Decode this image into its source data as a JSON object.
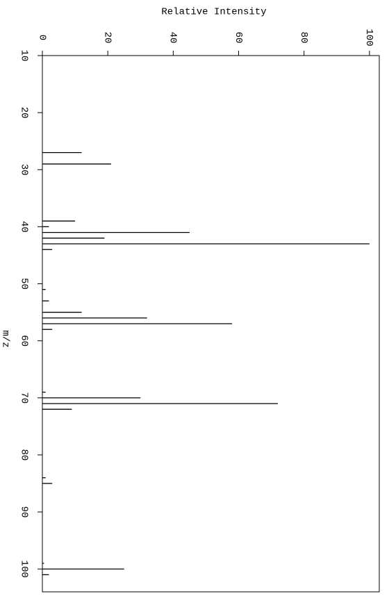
{
  "chart_data": {
    "type": "bar",
    "orientation": "horizontal",
    "x_label": "Relative Intensity",
    "y_label": "m/z",
    "categories": [
      27,
      29,
      39,
      40,
      41,
      42,
      43,
      44,
      51,
      53,
      55,
      56,
      57,
      58,
      69,
      70,
      71,
      72,
      84,
      85,
      99,
      100,
      101
    ],
    "values": [
      12,
      21,
      10,
      2,
      45,
      19,
      100,
      3,
      1,
      2,
      12,
      32,
      58,
      3,
      1,
      30,
      72,
      9,
      1,
      3,
      0.5,
      25,
      2
    ],
    "color": "#000000",
    "xlim": [
      0,
      103
    ],
    "xticks": [
      0,
      20,
      40,
      60,
      80,
      100
    ],
    "ylim": [
      10,
      104
    ],
    "yticks": [
      10,
      20,
      30,
      40,
      50,
      60,
      70,
      80,
      90,
      100
    ]
  }
}
